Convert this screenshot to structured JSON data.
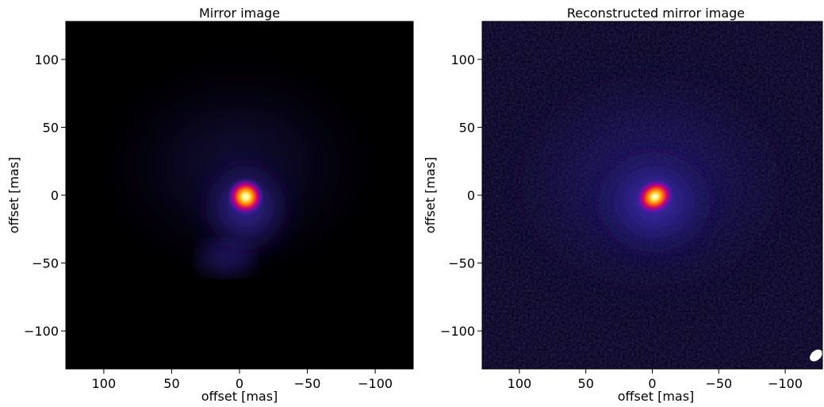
{
  "chart_data": [
    {
      "type": "heatmap",
      "title": "Mirror image",
      "xlabel": "offset [mas]",
      "ylabel": "offset [mas]",
      "xlim": [
        128,
        -128
      ],
      "ylim": [
        -128,
        128
      ],
      "x_ticks": [
        100,
        50,
        0,
        -50,
        -100
      ],
      "y_ticks": [
        100,
        50,
        0,
        -50,
        -100
      ],
      "x_tick_labels": [
        "100",
        "50",
        "0",
        "−50",
        "−100"
      ],
      "y_tick_labels": [
        "100",
        "50",
        "0",
        "−50",
        "−100"
      ],
      "colormap": "gnuplot2",
      "peak_offset": [
        -5,
        -2
      ],
      "background_color": "#000000",
      "peak_color": "#ffffff"
    },
    {
      "type": "heatmap",
      "title": "Reconstructed mirror image",
      "xlabel": "offset [mas]",
      "ylabel": "offset [mas]",
      "xlim": [
        128,
        -128
      ],
      "ylim": [
        -128,
        128
      ],
      "x_ticks": [
        100,
        50,
        0,
        -50,
        -100
      ],
      "y_ticks": [
        100,
        50,
        0,
        -50,
        -100
      ],
      "x_tick_labels": [
        "100",
        "50",
        "0",
        "−50",
        "−100"
      ],
      "y_tick_labels": [
        "100",
        "50",
        "0",
        "−50",
        "−100"
      ],
      "colormap": "gnuplot2",
      "peak_offset": [
        0,
        -2
      ],
      "beam_ellipse": {
        "x": -118,
        "y": -118,
        "shape": "white ellipse"
      },
      "background_color": "#06031a",
      "peak_color": "#ffffff"
    }
  ]
}
